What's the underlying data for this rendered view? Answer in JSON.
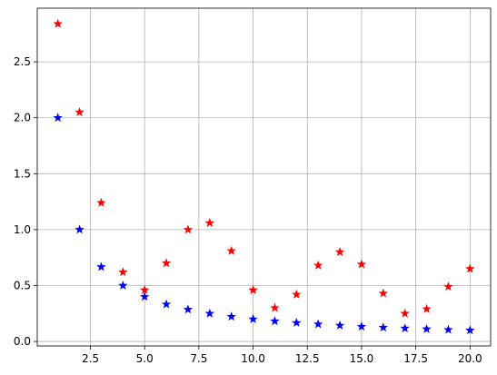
{
  "chart_data": {
    "type": "scatter",
    "title": "",
    "xlabel": "",
    "ylabel": "",
    "xlim": [
      0.05,
      20.95
    ],
    "ylim": [
      -0.04,
      2.98
    ],
    "grid": true,
    "marker": "star",
    "x_ticks": [
      2.5,
      5.0,
      7.5,
      10.0,
      12.5,
      15.0,
      17.5,
      20.0
    ],
    "x_tick_labels": [
      "2.5",
      "5.0",
      "7.5",
      "10.0",
      "12.5",
      "15.0",
      "17.5",
      "20.0"
    ],
    "y_ticks": [
      0.0,
      0.5,
      1.0,
      1.5,
      2.0,
      2.5
    ],
    "y_tick_labels": [
      "0.0",
      "0.5",
      "1.0",
      "1.5",
      "2.0",
      "2.5"
    ],
    "x": [
      1,
      2,
      3,
      4,
      5,
      6,
      7,
      8,
      9,
      10,
      11,
      12,
      13,
      14,
      15,
      16,
      17,
      18,
      19,
      20
    ],
    "series": [
      {
        "color": "#0000ff",
        "values": [
          2.0,
          1.0,
          0.667,
          0.5,
          0.4,
          0.333,
          0.286,
          0.25,
          0.222,
          0.2,
          0.182,
          0.167,
          0.154,
          0.143,
          0.133,
          0.125,
          0.118,
          0.111,
          0.105,
          0.1
        ]
      },
      {
        "color": "#ff0000",
        "values": [
          2.84,
          2.05,
          1.24,
          0.62,
          0.46,
          0.7,
          1.0,
          1.06,
          0.81,
          0.46,
          0.3,
          0.42,
          0.68,
          0.8,
          0.69,
          0.43,
          0.25,
          0.29,
          0.49,
          0.65
        ]
      }
    ]
  }
}
